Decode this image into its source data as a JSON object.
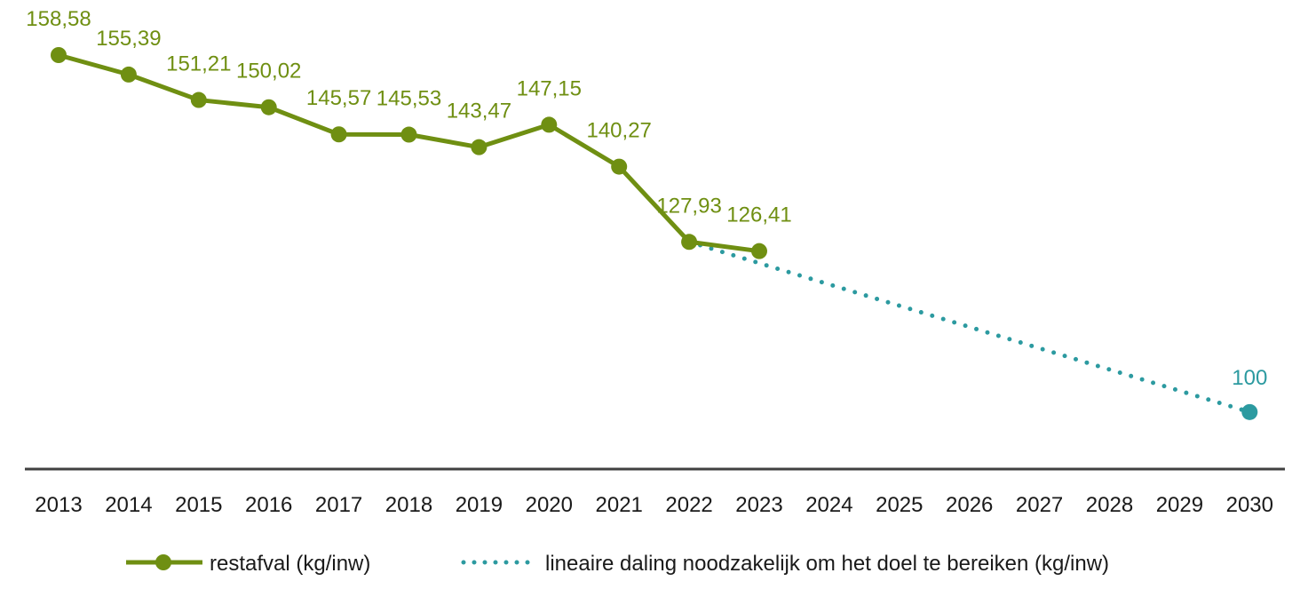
{
  "chart_data": {
    "type": "line",
    "x": [
      "2013",
      "2014",
      "2015",
      "2016",
      "2017",
      "2018",
      "2019",
      "2020",
      "2021",
      "2022",
      "2023",
      "2024",
      "2025",
      "2026",
      "2027",
      "2028",
      "2029",
      "2030"
    ],
    "series": [
      {
        "name": "restafval (kg/inw)",
        "style": "solid-markers",
        "color": "#6f8f12",
        "x": [
          "2013",
          "2014",
          "2015",
          "2016",
          "2017",
          "2018",
          "2019",
          "2020",
          "2021",
          "2022",
          "2023"
        ],
        "values": [
          158.58,
          155.39,
          151.21,
          150.02,
          145.57,
          145.53,
          143.47,
          147.15,
          140.27,
          127.93,
          126.41
        ],
        "labels": [
          "158,58",
          "155,39",
          "151,21",
          "150,02",
          "145,57",
          "145,53",
          "143,47",
          "147,15",
          "140,27",
          "127,93",
          "126,41"
        ]
      },
      {
        "name": "lineaire daling noodzakelijk om het doel te bereiken (kg/inw)",
        "style": "dotted",
        "color": "#2c9aa0",
        "x": [
          "2022",
          "2030"
        ],
        "values": [
          127.93,
          100
        ],
        "end_label": "100"
      }
    ],
    "xlabel": "",
    "ylabel": "",
    "grid": false,
    "legend_position": "bottom"
  }
}
